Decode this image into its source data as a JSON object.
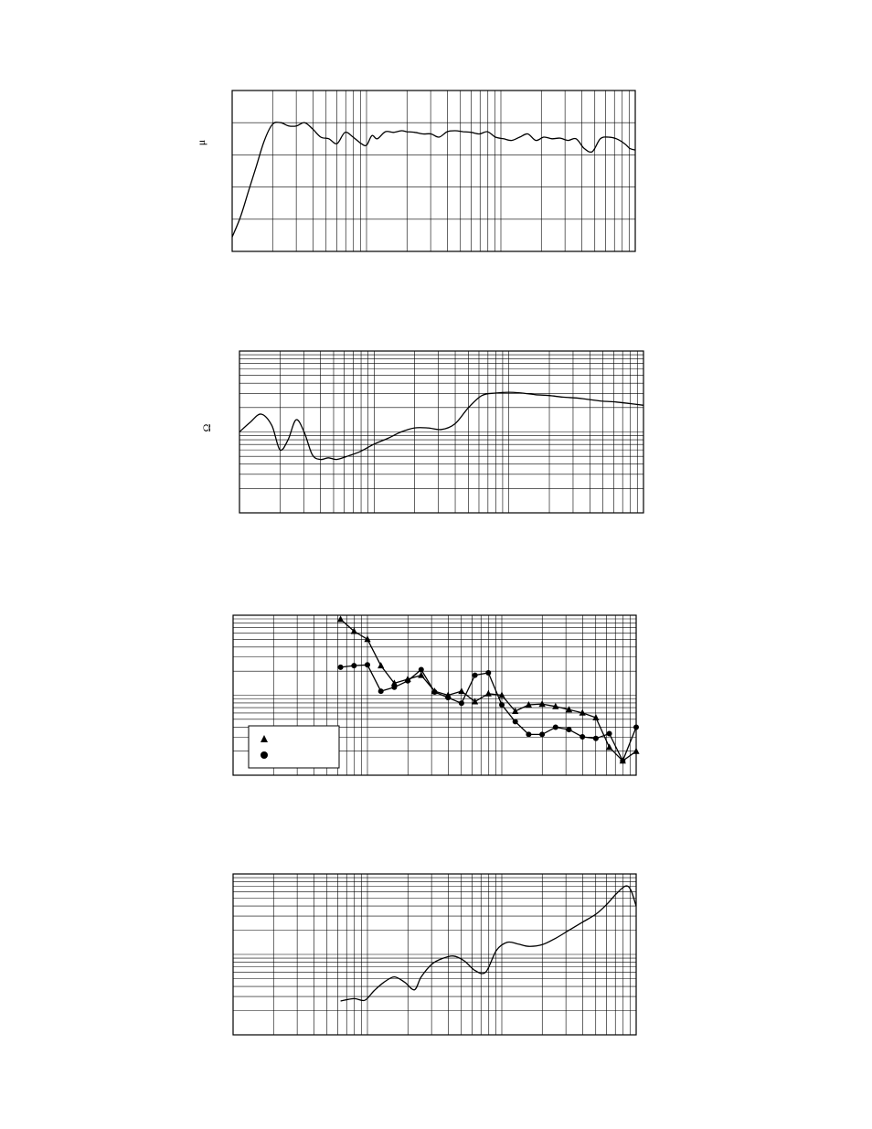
{
  "chart_data": [
    {
      "type": "line",
      "ylabel": "μ",
      "x_scale": "log",
      "x_decades": 3,
      "y_grid_divisions": 5,
      "xlim": [
        0,
        3
      ],
      "ylim": [
        0,
        5
      ],
      "series": [
        {
          "x": [
            0.0,
            0.06,
            0.12,
            0.18,
            0.24,
            0.3,
            0.36,
            0.42,
            0.48,
            0.54,
            0.6,
            0.66,
            0.72,
            0.78,
            0.84,
            0.9,
            0.96,
            1.0,
            1.04,
            1.08,
            1.14,
            1.2,
            1.26,
            1.3,
            1.36,
            1.42,
            1.48,
            1.54,
            1.6,
            1.66,
            1.72,
            1.78,
            1.84,
            1.9,
            1.96,
            2.02,
            2.08,
            2.14,
            2.2,
            2.26,
            2.32,
            2.38,
            2.44,
            2.5,
            2.56,
            2.62,
            2.68,
            2.74,
            2.8,
            2.86,
            2.92,
            2.96,
            3.0
          ],
          "y": [
            0.45,
            1.05,
            1.85,
            2.65,
            3.45,
            3.95,
            4.0,
            3.9,
            3.9,
            4.0,
            3.8,
            3.55,
            3.5,
            3.35,
            3.7,
            3.55,
            3.35,
            3.3,
            3.6,
            3.5,
            3.72,
            3.7,
            3.75,
            3.72,
            3.7,
            3.65,
            3.65,
            3.55,
            3.72,
            3.75,
            3.72,
            3.7,
            3.65,
            3.72,
            3.55,
            3.5,
            3.45,
            3.55,
            3.65,
            3.45,
            3.55,
            3.5,
            3.52,
            3.45,
            3.5,
            3.2,
            3.1,
            3.5,
            3.55,
            3.5,
            3.35,
            3.2,
            3.15
          ]
        }
      ]
    },
    {
      "type": "line",
      "ylabel": "Ω",
      "x_scale": "log",
      "y_scale": "log",
      "x_decades": 3,
      "y_decades": 2,
      "xlim": [
        0,
        3
      ],
      "ylim": [
        0,
        2
      ],
      "series": [
        {
          "x": [
            0.0,
            0.08,
            0.16,
            0.24,
            0.3,
            0.36,
            0.42,
            0.48,
            0.54,
            0.6,
            0.66,
            0.72,
            0.8,
            0.9,
            1.0,
            1.1,
            1.2,
            1.3,
            1.4,
            1.5,
            1.6,
            1.7,
            1.8,
            1.9,
            2.0,
            2.1,
            2.2,
            2.3,
            2.4,
            2.5,
            2.6,
            2.7,
            2.8,
            2.9,
            3.0
          ],
          "y": [
            1.0,
            1.12,
            1.22,
            1.08,
            0.78,
            0.9,
            1.15,
            1.0,
            0.72,
            0.66,
            0.68,
            0.66,
            0.7,
            0.76,
            0.85,
            0.92,
            1.0,
            1.05,
            1.05,
            1.03,
            1.1,
            1.3,
            1.45,
            1.48,
            1.49,
            1.48,
            1.46,
            1.45,
            1.43,
            1.42,
            1.4,
            1.38,
            1.37,
            1.35,
            1.33
          ]
        }
      ]
    },
    {
      "type": "line",
      "x_scale": "log",
      "y_scale": "log",
      "x_decades": 3,
      "y_decades": 2,
      "xlim": [
        0,
        3
      ],
      "ylim": [
        0,
        2
      ],
      "legend": "bottom-left",
      "series": [
        {
          "marker": "triangle",
          "x": [
            0.8,
            0.9,
            1.0,
            1.1,
            1.2,
            1.3,
            1.4,
            1.5,
            1.6,
            1.7,
            1.8,
            1.9,
            2.0,
            2.1,
            2.2,
            2.3,
            2.4,
            2.5,
            2.6,
            2.7,
            2.8,
            2.9,
            3.0
          ],
          "y": [
            1.95,
            1.8,
            1.7,
            1.37,
            1.15,
            1.2,
            1.25,
            1.05,
            1.0,
            1.05,
            0.92,
            1.02,
            1.0,
            0.8,
            0.88,
            0.89,
            0.86,
            0.82,
            0.78,
            0.72,
            0.35,
            0.18,
            0.3
          ]
        },
        {
          "marker": "circle",
          "x": [
            0.8,
            0.9,
            1.0,
            1.1,
            1.2,
            1.3,
            1.4,
            1.5,
            1.6,
            1.7,
            1.8,
            1.9,
            2.0,
            2.1,
            2.2,
            2.3,
            2.4,
            2.5,
            2.6,
            2.7,
            2.8,
            2.9,
            3.0
          ],
          "y": [
            1.35,
            1.37,
            1.38,
            1.05,
            1.1,
            1.18,
            1.32,
            1.04,
            0.97,
            0.9,
            1.25,
            1.28,
            0.88,
            0.67,
            0.51,
            0.51,
            0.6,
            0.57,
            0.48,
            0.46,
            0.52,
            0.18,
            0.6
          ]
        }
      ]
    },
    {
      "type": "line",
      "x_scale": "log",
      "y_scale": "log",
      "x_decades": 3,
      "y_decades": 2,
      "xlim": [
        0,
        3
      ],
      "ylim": [
        0,
        2
      ],
      "series": [
        {
          "x": [
            0.8,
            0.9,
            0.98,
            1.05,
            1.12,
            1.2,
            1.28,
            1.35,
            1.4,
            1.48,
            1.56,
            1.64,
            1.72,
            1.8,
            1.88,
            1.96,
            2.04,
            2.12,
            2.2,
            2.3,
            2.4,
            2.5,
            2.6,
            2.7,
            2.78,
            2.85,
            2.92,
            2.96,
            3.0
          ],
          "y": [
            0.42,
            0.45,
            0.43,
            0.55,
            0.65,
            0.72,
            0.65,
            0.56,
            0.72,
            0.88,
            0.95,
            0.98,
            0.92,
            0.8,
            0.78,
            1.05,
            1.15,
            1.13,
            1.1,
            1.12,
            1.2,
            1.3,
            1.4,
            1.5,
            1.62,
            1.75,
            1.85,
            1.8,
            1.6
          ]
        }
      ]
    }
  ]
}
